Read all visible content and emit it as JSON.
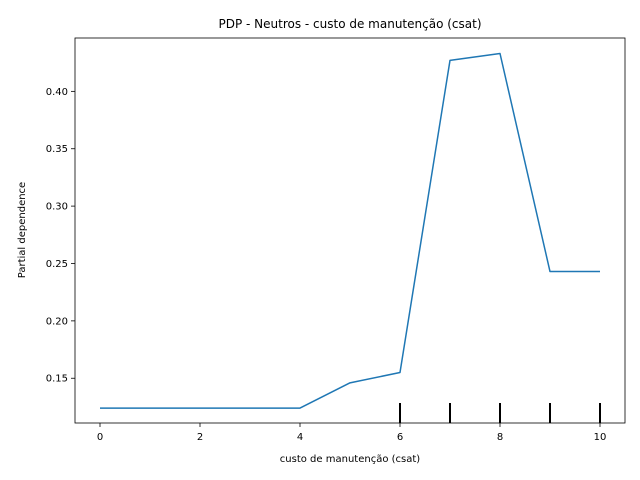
{
  "chart_data": {
    "type": "line",
    "title": "PDP - Neutros - custo de manutenção (csat)",
    "xlabel": "custo de manutenção (csat)",
    "ylabel": "Partial dependence",
    "xlim": [
      -0.5,
      10.5
    ],
    "ylim": [
      0.111,
      0.4465
    ],
    "x_ticks": [
      0,
      2,
      4,
      6,
      8,
      10
    ],
    "x_tick_labels": [
      "0",
      "2",
      "4",
      "6",
      "8",
      "10"
    ],
    "y_ticks": [
      0.15,
      0.2,
      0.25,
      0.3,
      0.35,
      0.4
    ],
    "y_tick_labels": [
      "0.15",
      "0.20",
      "0.25",
      "0.30",
      "0.35",
      "0.40"
    ],
    "grid": false,
    "series": [
      {
        "color": "#1f77b4",
        "x": [
          0,
          1,
          2,
          3,
          4,
          5,
          6,
          7,
          8,
          9,
          10
        ],
        "y": [
          0.124,
          0.124,
          0.124,
          0.124,
          0.124,
          0.146,
          0.155,
          0.427,
          0.433,
          0.243,
          0.243
        ]
      }
    ],
    "rug": {
      "color": "#000000",
      "x": [
        6,
        7,
        8,
        9,
        10
      ]
    }
  }
}
